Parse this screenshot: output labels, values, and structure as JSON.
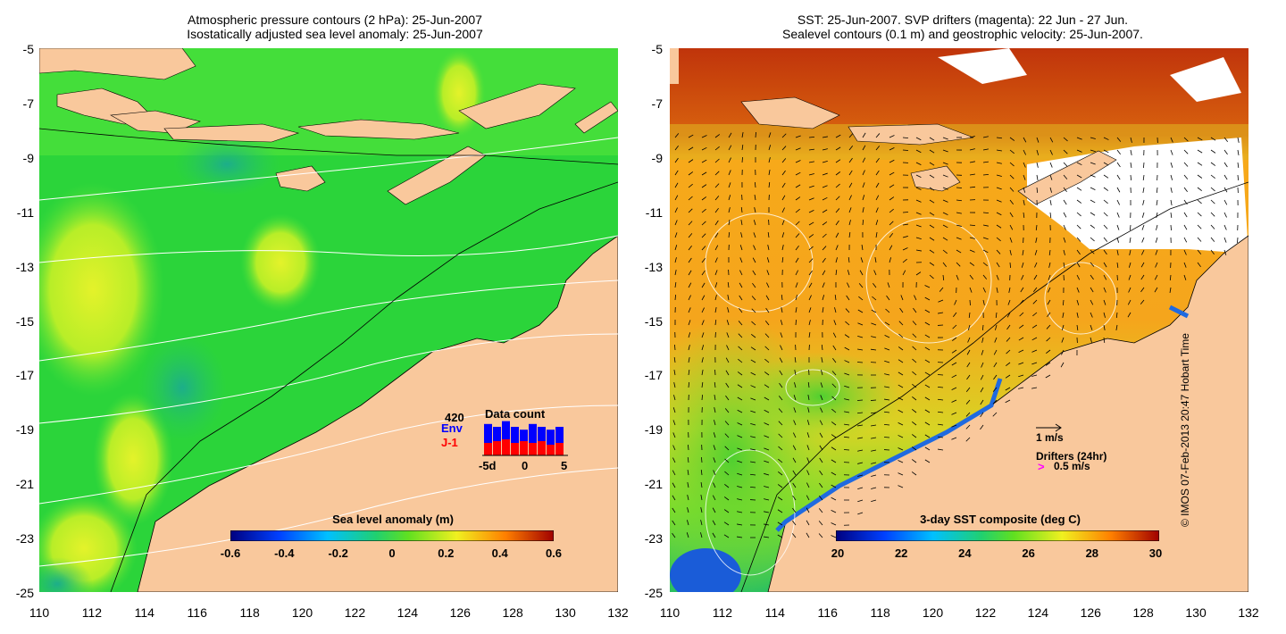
{
  "left_panel": {
    "title_line1": "Atmospheric pressure contours (2 hPa): 25-Jun-2007",
    "title_line2": "Isostatically adjusted sea level anomaly: 25-Jun-2007",
    "colorbar_title": "Sea level anomaly (m)",
    "colorbar_ticks": [
      "-0.6",
      "-0.4",
      "-0.2",
      "0",
      "0.2",
      "0.4",
      "0.6"
    ],
    "inset": {
      "count": "420",
      "env_label": "Env",
      "j1_label": "J-1",
      "title": "Data count",
      "ticks": [
        "-5d",
        "0",
        "5"
      ],
      "env_values": [
        0.55,
        0.5,
        0.6,
        0.5,
        0.45,
        0.55,
        0.5,
        0.45,
        0.5
      ],
      "j1_values": [
        0.35,
        0.4,
        0.45,
        0.35,
        0.4,
        0.35,
        0.4,
        0.3,
        0.35
      ],
      "colors": {
        "env": "#0000ff",
        "j1": "#ff0000"
      }
    }
  },
  "right_panel": {
    "title_line1": "SST: 25-Jun-2007. SVP drifters (magenta): 22 Jun - 27 Jun.",
    "title_line2": "Sealevel contours (0.1 m) and geostrophic velocity: 25-Jun-2007.",
    "colorbar_title": "3-day SST composite (deg C)",
    "colorbar_ticks": [
      "20",
      "22",
      "24",
      "26",
      "28",
      "30"
    ],
    "velocity_label": "1 m/s",
    "drifters_label": "Drifters (24hr)",
    "drifter_speed_label": "0.5 m/s",
    "drifter_marker": ">",
    "drifter_color": "#ff00ff"
  },
  "axes": {
    "y_ticks": [
      "-5",
      "-7",
      "-9",
      "-11",
      "-13",
      "-15",
      "-17",
      "-19",
      "-21",
      "-23",
      "-25"
    ],
    "x_ticks": [
      "110",
      "112",
      "114",
      "116",
      "118",
      "120",
      "122",
      "124",
      "126",
      "128",
      "130",
      "132"
    ]
  },
  "credit": "© IMOS 07-Feb-2013 20:47 Hobart Time",
  "colors": {
    "land": "#f9c89c",
    "sla_green": "#27d635",
    "sla_yellow": "#c6f02a",
    "sst_orange": "#f9a41c",
    "sst_red": "#c0340b"
  }
}
